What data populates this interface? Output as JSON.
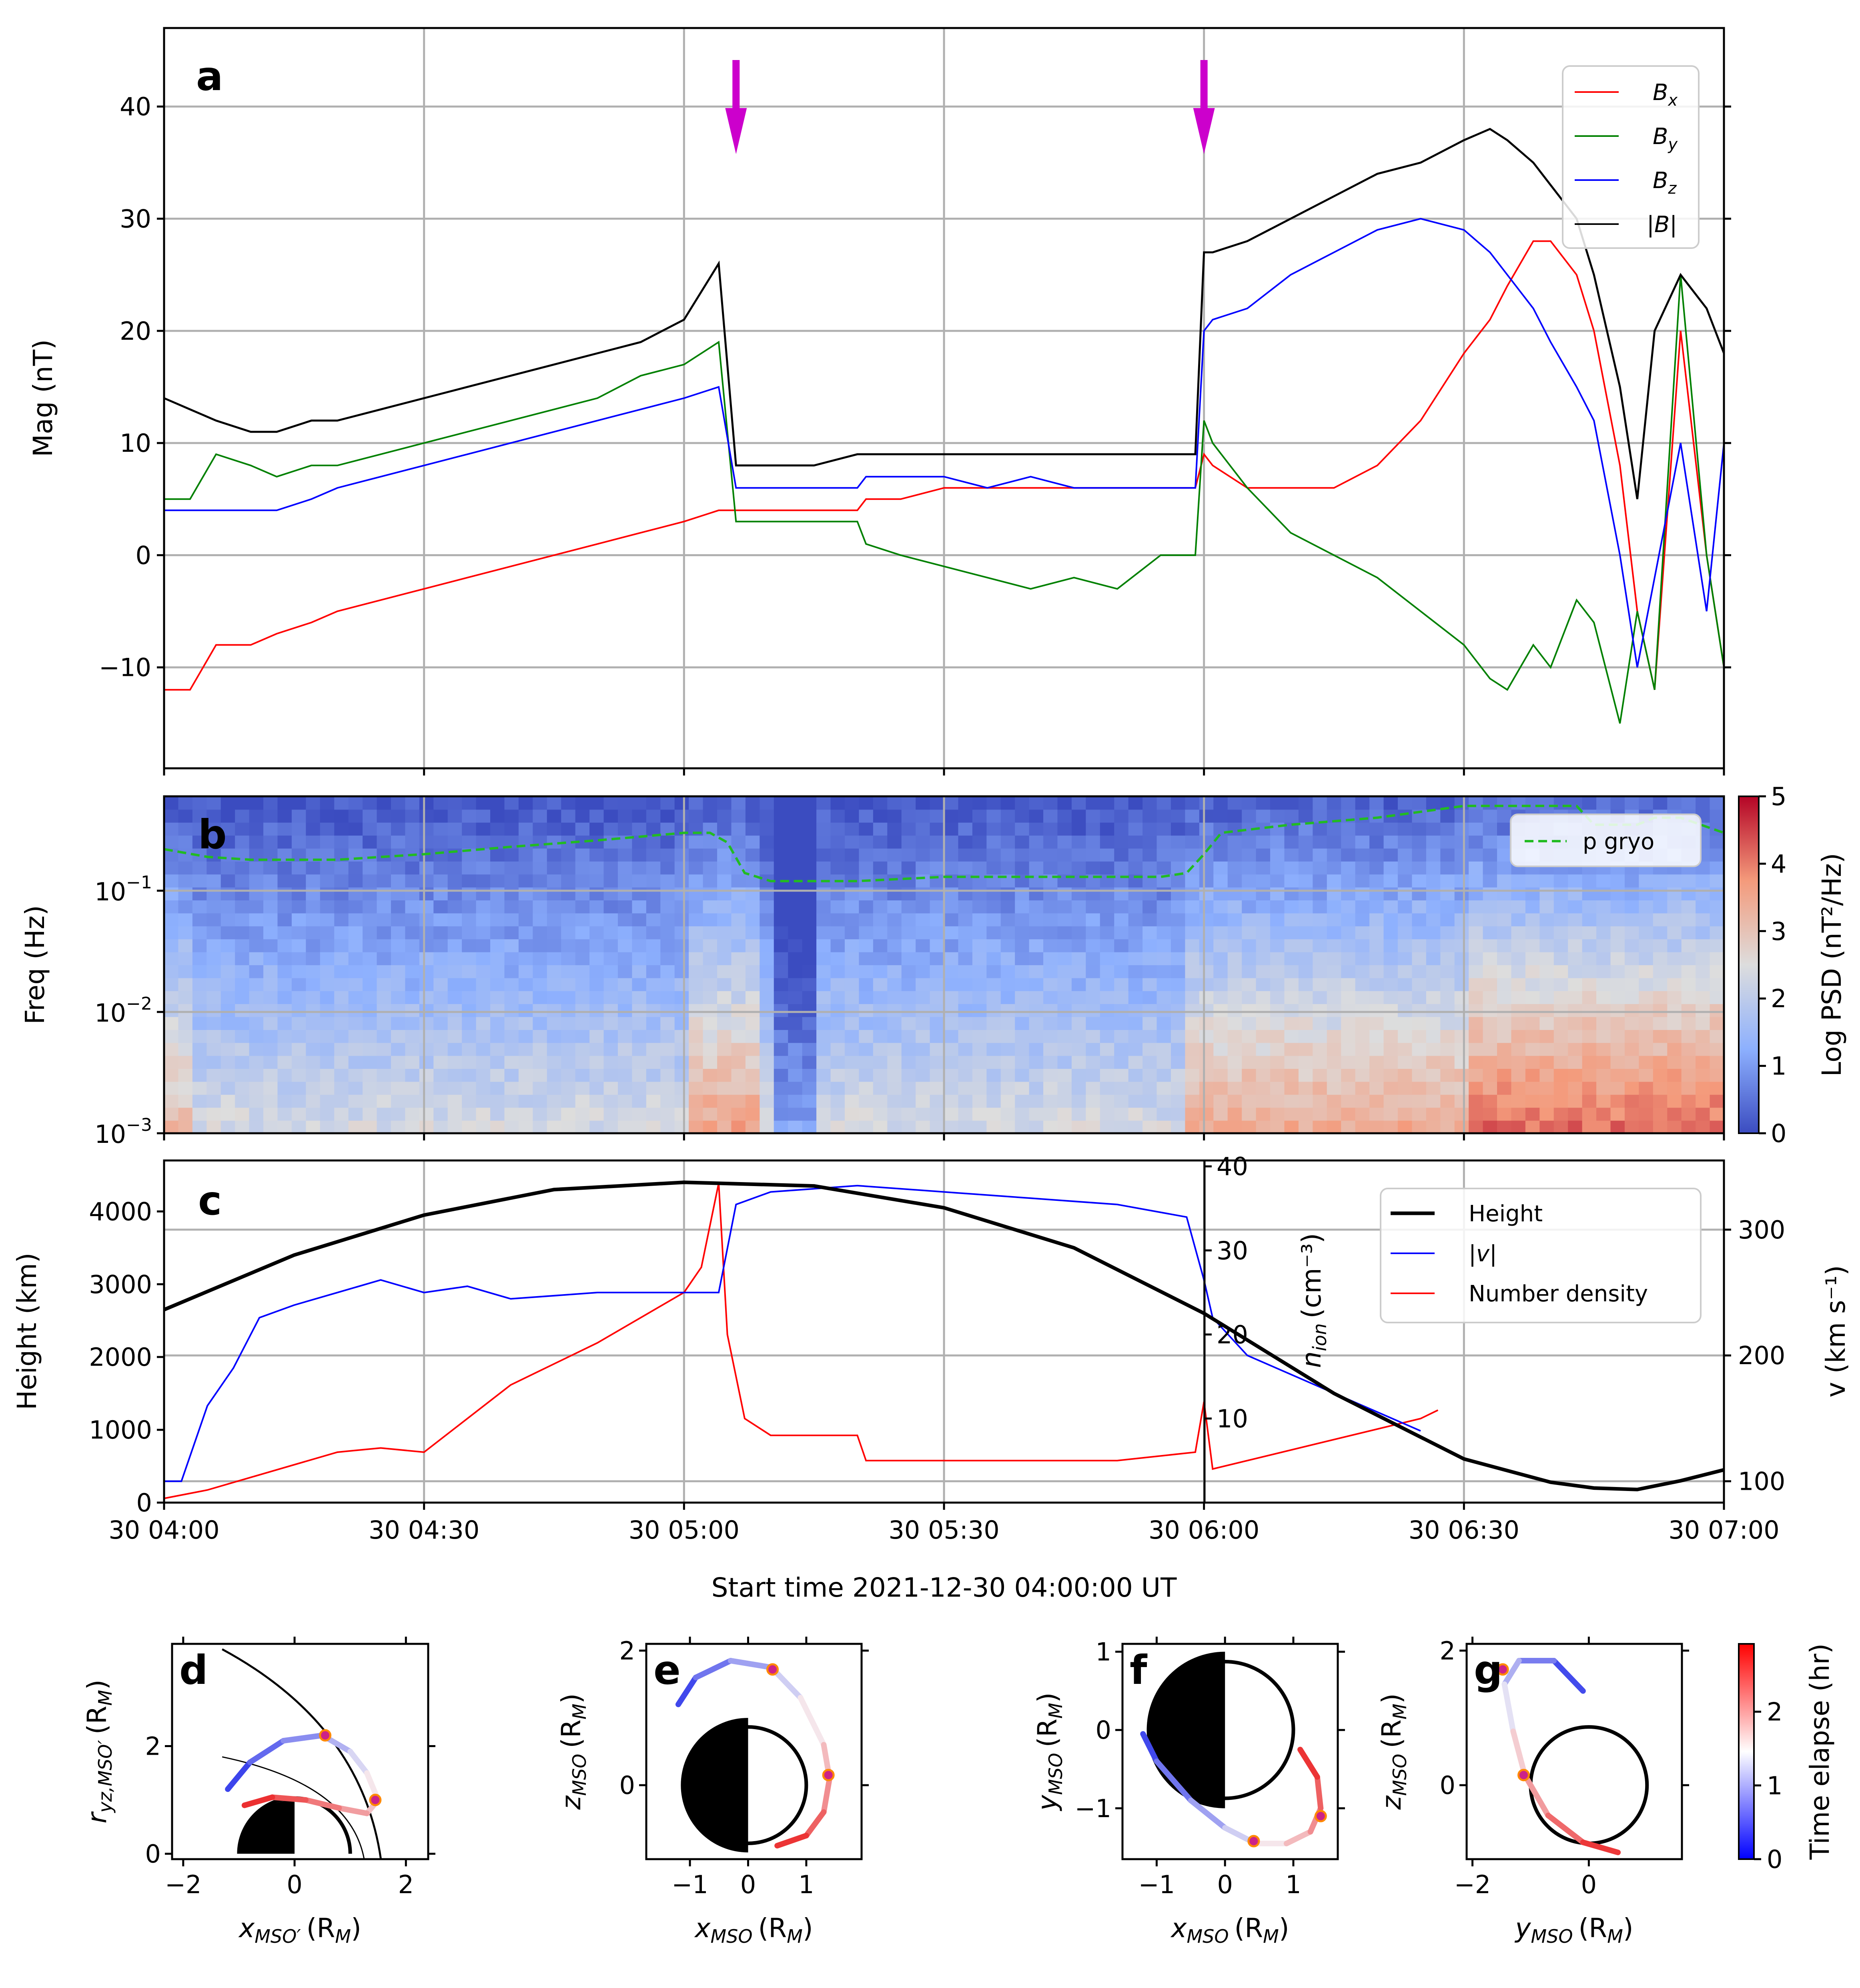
{
  "chart_data": [
    {
      "type": "line",
      "panel": "a",
      "ylabel": "Mag (nT)",
      "xlim": [
        "04:00",
        "07:00"
      ],
      "ylim": [
        -19,
        47
      ],
      "yticks": [
        -10,
        0,
        10,
        20,
        30,
        40
      ],
      "ytick_labels": [
        "−10",
        "0",
        "10",
        "20",
        "30",
        "40"
      ],
      "grid": true,
      "legend": "top-right",
      "annotations": [
        {
          "type": "arrow-down",
          "x_min": 66,
          "color": "#cc00cc"
        },
        {
          "type": "arrow-down",
          "x_min": 120,
          "color": "#cc00cc"
        }
      ],
      "x_minutes": [
        0,
        3,
        6,
        10,
        13,
        17,
        20,
        25,
        30,
        35,
        40,
        45,
        50,
        55,
        60,
        64,
        66,
        67,
        70,
        75,
        80,
        81,
        85,
        90,
        95,
        100,
        105,
        110,
        115,
        119,
        120,
        121,
        125,
        130,
        135,
        140,
        145,
        150,
        153,
        155,
        158,
        160,
        163,
        165,
        168,
        170,
        172,
        175,
        178,
        180
      ],
      "series": [
        {
          "name": "B",
          "sub": "x",
          "color": "#ff0000",
          "values": [
            -12,
            -12,
            -8,
            -8,
            -7,
            -6,
            -5,
            -4,
            -3,
            -2,
            -1,
            0,
            1,
            2,
            3,
            4,
            4,
            4,
            4,
            4,
            4,
            5,
            5,
            6,
            6,
            6,
            6,
            6,
            6,
            6,
            9,
            8,
            6,
            6,
            6,
            8,
            12,
            18,
            21,
            24,
            28,
            28,
            25,
            20,
            8,
            -5,
            -12,
            20,
            0,
            -10
          ]
        },
        {
          "name": "B",
          "sub": "y",
          "color": "#008000",
          "values": [
            5,
            5,
            9,
            8,
            7,
            8,
            8,
            9,
            10,
            11,
            12,
            13,
            14,
            16,
            17,
            19,
            3,
            3,
            3,
            3,
            3,
            1,
            0,
            -1,
            -2,
            -3,
            -2,
            -3,
            0,
            0,
            12,
            10,
            6,
            2,
            0,
            -2,
            -5,
            -8,
            -11,
            -12,
            -8,
            -10,
            -4,
            -6,
            -15,
            -5,
            -12,
            25,
            0,
            -10
          ]
        },
        {
          "name": "B",
          "sub": "z",
          "color": "#0000ff",
          "values": [
            4,
            4,
            4,
            4,
            4,
            5,
            6,
            7,
            8,
            9,
            10,
            11,
            12,
            13,
            14,
            15,
            6,
            6,
            6,
            6,
            6,
            7,
            7,
            7,
            6,
            7,
            6,
            6,
            6,
            6,
            20,
            21,
            22,
            25,
            27,
            29,
            30,
            29,
            27,
            25,
            22,
            19,
            15,
            12,
            0,
            -10,
            -2,
            10,
            -5,
            10
          ]
        },
        {
          "name": "|B|",
          "sub": "",
          "color": "#000000",
          "values": [
            14,
            13,
            12,
            11,
            11,
            12,
            12,
            13,
            14,
            15,
            16,
            17,
            18,
            19,
            21,
            26,
            8,
            8,
            8,
            8,
            9,
            9,
            9,
            9,
            9,
            9,
            9,
            9,
            9,
            9,
            27,
            27,
            28,
            30,
            32,
            34,
            35,
            37,
            38,
            37,
            35,
            33,
            30,
            25,
            15,
            5,
            20,
            25,
            22,
            18
          ]
        }
      ]
    },
    {
      "type": "heatmap",
      "panel": "b",
      "ylabel": "Freq (Hz)",
      "yscale": "log",
      "ylim": [
        0.001,
        0.6
      ],
      "ytick_labels": [
        {
          "base": "10",
          "exp": "−3",
          "value": 0.001
        },
        {
          "base": "10",
          "exp": "−2",
          "value": 0.01
        },
        {
          "base": "10",
          "exp": "−1",
          "value": 0.1
        }
      ],
      "colorbar_label": "Log PSD (nT²/Hz)",
      "colorbar_ticks": [
        "0",
        "1",
        "2",
        "3",
        "4",
        "5"
      ],
      "clim": [
        0,
        5
      ],
      "legend": "top-right",
      "gyro_line": {
        "name": "p gryo",
        "color": "#22bb22",
        "x_minutes": [
          0,
          5,
          10,
          20,
          30,
          40,
          50,
          60,
          63,
          65,
          67,
          70,
          80,
          90,
          100,
          110,
          115,
          118,
          120,
          122,
          130,
          140,
          150,
          158,
          163,
          165,
          170,
          172,
          175,
          180
        ],
        "values": [
          0.22,
          0.19,
          0.18,
          0.18,
          0.2,
          0.23,
          0.26,
          0.3,
          0.3,
          0.25,
          0.14,
          0.12,
          0.12,
          0.13,
          0.13,
          0.13,
          0.13,
          0.14,
          0.2,
          0.3,
          0.35,
          0.4,
          0.5,
          0.5,
          0.5,
          0.35,
          0.35,
          0.4,
          0.4,
          0.3
        ]
      }
    },
    {
      "type": "line",
      "panel": "c",
      "ylabel": "Height (km)",
      "ylim": [
        0,
        4700
      ],
      "yticks": [
        0,
        1000,
        2000,
        3000,
        4000
      ],
      "y2label_n": "n",
      "y2label_n_sub": "ion",
      "y2label_n_unit": "(cm⁻³)",
      "y2_n_ticks": [
        "10",
        "20",
        "30",
        "40"
      ],
      "y2label_v": "v (km s⁻¹)",
      "y2_v_ticks": [
        "100",
        "200",
        "300"
      ],
      "xlabel": "Start time 2021-12-30 04:00:00 UT",
      "xtick_labels": [
        "30 04:00",
        "30 04:30",
        "30 05:00",
        "30 05:30",
        "30 06:00",
        "30 06:30",
        "30 07:00"
      ],
      "legend": "top-right",
      "height_km": {
        "name": "Height",
        "color": "#000000",
        "x_minutes": [
          0,
          15,
          30,
          45,
          60,
          75,
          90,
          105,
          120,
          135,
          150,
          160,
          165,
          170,
          175,
          180
        ],
        "values": [
          2650,
          3400,
          3950,
          4300,
          4400,
          4350,
          4050,
          3500,
          2600,
          1500,
          600,
          280,
          200,
          180,
          300,
          450
        ]
      },
      "velocity": {
        "name": "|v|",
        "color": "#0000ff",
        "x_minutes": [
          0,
          2,
          5,
          8,
          11,
          15,
          20,
          25,
          30,
          35,
          40,
          50,
          60,
          64,
          66,
          70,
          80,
          90,
          100,
          110,
          118,
          120,
          121,
          125,
          135,
          145
        ],
        "values": [
          100,
          100,
          160,
          190,
          230,
          240,
          250,
          260,
          250,
          255,
          245,
          250,
          250,
          250,
          320,
          330,
          335,
          330,
          325,
          320,
          310,
          260,
          230,
          200,
          170,
          140
        ]
      },
      "density": {
        "name": "Number density",
        "color": "#ff0000",
        "x_minutes": [
          0,
          5,
          10,
          20,
          25,
          30,
          40,
          50,
          55,
          60,
          62,
          64,
          65,
          66,
          67,
          70,
          80,
          81,
          90,
          100,
          110,
          119,
          120,
          121,
          145,
          147
        ],
        "values": [
          0.5,
          1.5,
          3,
          6,
          6.5,
          6,
          14,
          19,
          22,
          25,
          28,
          38,
          20,
          15,
          10,
          8,
          8,
          5,
          5,
          5,
          5,
          6,
          12,
          4,
          10,
          11
        ]
      }
    },
    {
      "type": "scatter",
      "panel": "d",
      "xlabel": "x",
      "xlabel_sub": "MSO′",
      "xlabel_unit": "(R",
      "xlabel_unit_sub": "M",
      "ylabel": "r",
      "ylabel_sub": "yz,MSO′",
      "ylabel_unit": "(R",
      "ylabel_unit_sub": "M",
      "xticks": [
        "−2",
        "0",
        "2"
      ],
      "yticks": [
        "0",
        "2"
      ],
      "xlim": [
        -2.2,
        2.4
      ],
      "ylim": [
        -0.1,
        3.9
      ],
      "trajectory": [
        [
          -1.2,
          1.2
        ],
        [
          -0.8,
          1.7
        ],
        [
          -0.2,
          2.1
        ],
        [
          0.5,
          2.2
        ],
        [
          1.0,
          1.9
        ],
        [
          1.3,
          1.5
        ],
        [
          1.5,
          1.0
        ],
        [
          1.3,
          0.75
        ],
        [
          0.8,
          0.85
        ],
        [
          0.2,
          1.0
        ],
        [
          -0.4,
          1.05
        ],
        [
          -0.9,
          0.9
        ]
      ],
      "markers": [
        [
          0.55,
          2.2
        ],
        [
          1.45,
          1.0
        ]
      ]
    },
    {
      "type": "scatter",
      "panel": "e",
      "xlabel": "z",
      "xlabel_var": "x",
      "xlabel_sub": "MSO",
      "xlabel_unit": "(R",
      "xlabel_unit_sub": "M",
      "ylabel": "z",
      "ylabel_sub": "MSO",
      "ylabel_unit": "(R",
      "ylabel_unit_sub": "M",
      "xticks": [
        "−1",
        "0",
        "1"
      ],
      "yticks": [
        "0",
        "2"
      ],
      "xlim": [
        -1.75,
        1.95
      ],
      "ylim": [
        -1.1,
        2.1
      ],
      "trajectory": [
        [
          -1.2,
          1.2
        ],
        [
          -0.9,
          1.6
        ],
        [
          -0.3,
          1.85
        ],
        [
          0.4,
          1.75
        ],
        [
          0.9,
          1.3
        ],
        [
          1.3,
          0.6
        ],
        [
          1.4,
          0.1
        ],
        [
          1.3,
          -0.4
        ],
        [
          1.0,
          -0.75
        ],
        [
          0.5,
          -0.9
        ]
      ],
      "markers": [
        [
          0.42,
          1.72
        ],
        [
          1.38,
          0.15
        ]
      ]
    },
    {
      "type": "scatter",
      "panel": "f",
      "xlabel": "x",
      "xlabel_sub": "MSO",
      "xlabel_unit": "(R",
      "xlabel_unit_sub": "M",
      "ylabel": "y",
      "ylabel_sub": "MSO",
      "ylabel_unit": "(R",
      "ylabel_unit_sub": "M",
      "xticks": [
        "−1",
        "0",
        "1"
      ],
      "yticks": [
        "−1",
        "0",
        "1"
      ],
      "xlim": [
        -1.5,
        1.65
      ],
      "ylim": [
        -1.65,
        1.1
      ],
      "trajectory": [
        [
          -1.2,
          -0.05
        ],
        [
          -1.0,
          -0.4
        ],
        [
          -0.5,
          -0.9
        ],
        [
          0.0,
          -1.25
        ],
        [
          0.45,
          -1.45
        ],
        [
          0.9,
          -1.45
        ],
        [
          1.25,
          -1.3
        ],
        [
          1.4,
          -1.0
        ],
        [
          1.35,
          -0.6
        ],
        [
          1.1,
          -0.25
        ]
      ],
      "markers": [
        [
          0.42,
          -1.42
        ],
        [
          1.4,
          -1.1
        ]
      ]
    },
    {
      "type": "scatter",
      "panel": "g",
      "xlabel": "y",
      "xlabel_sub": "MSO",
      "xlabel_unit": "(R",
      "xlabel_unit_sub": "M",
      "ylabel": "z",
      "ylabel_sub": "MSO",
      "ylabel_unit": "(R",
      "ylabel_unit_sub": "M",
      "xticks": [
        "−2",
        "0"
      ],
      "yticks": [
        "0",
        "2"
      ],
      "xlim": [
        -2.1,
        1.6
      ],
      "ylim": [
        -1.1,
        2.1
      ],
      "trajectory": [
        [
          -0.1,
          1.4
        ],
        [
          -0.6,
          1.85
        ],
        [
          -1.2,
          1.85
        ],
        [
          -1.45,
          1.5
        ],
        [
          -1.3,
          0.8
        ],
        [
          -1.1,
          0.15
        ],
        [
          -0.7,
          -0.45
        ],
        [
          -0.1,
          -0.85
        ],
        [
          0.5,
          -1.0
        ]
      ],
      "markers": [
        [
          -1.48,
          1.72
        ],
        [
          -1.12,
          0.15
        ]
      ],
      "colorbar_label": "Time elapse (hr)",
      "colorbar_ticks": [
        "0",
        "1",
        "2"
      ]
    }
  ],
  "panel_labels": [
    "a",
    "b",
    "c",
    "d",
    "e",
    "f",
    "g"
  ]
}
